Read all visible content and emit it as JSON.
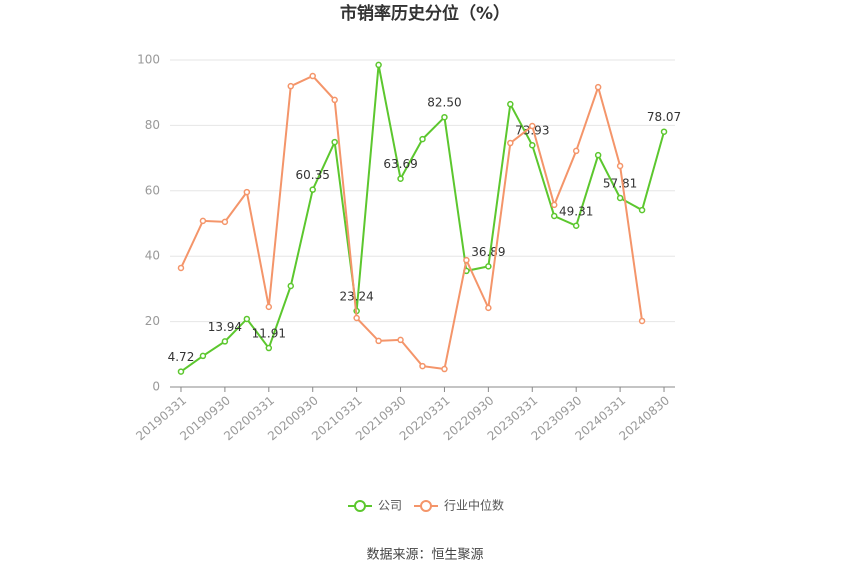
{
  "chart_data": {
    "type": "line",
    "title": "市销率历史分位（%）",
    "categories": [
      "20190331",
      null,
      "20190930",
      null,
      "20200331",
      null,
      "20200930",
      null,
      "20210331",
      null,
      "20210930",
      null,
      "20220331",
      null,
      "20220930",
      null,
      "20230331",
      null,
      "20230930",
      null,
      "20240331",
      null,
      "20240830"
    ],
    "series": [
      {
        "name": "公司",
        "color": "#5cc72e",
        "values": [
          4.72,
          9.5,
          13.94,
          20.8,
          11.91,
          30.9,
          60.35,
          74.9,
          23.24,
          98.5,
          63.69,
          75.8,
          82.5,
          35.5,
          36.89,
          86.5,
          73.93,
          52.3,
          49.31,
          70.9,
          57.81,
          54.1,
          78.07
        ],
        "value_labels": [
          "4.72",
          null,
          "13.94",
          null,
          "11.91",
          null,
          "60.35",
          null,
          "23.24",
          null,
          "63.69",
          null,
          "82.50",
          null,
          "36.89",
          null,
          "73.93",
          null,
          "49.31",
          null,
          "57.81",
          null,
          "78.07"
        ]
      },
      {
        "name": "行业中位数",
        "color": "#f4956a",
        "values": [
          36.4,
          50.8,
          50.5,
          59.6,
          24.5,
          92.0,
          95.1,
          87.8,
          21.1,
          14.1,
          14.4,
          6.4,
          5.5,
          38.8,
          24.2,
          74.6,
          79.8,
          55.7,
          72.2,
          91.7,
          67.6,
          20.2,
          null
        ]
      }
    ],
    "ylim": [
      0,
      100
    ],
    "yticks": [
      0,
      20,
      40,
      60,
      80,
      100
    ],
    "grid": true,
    "source": "数据来源：恒生聚源"
  }
}
